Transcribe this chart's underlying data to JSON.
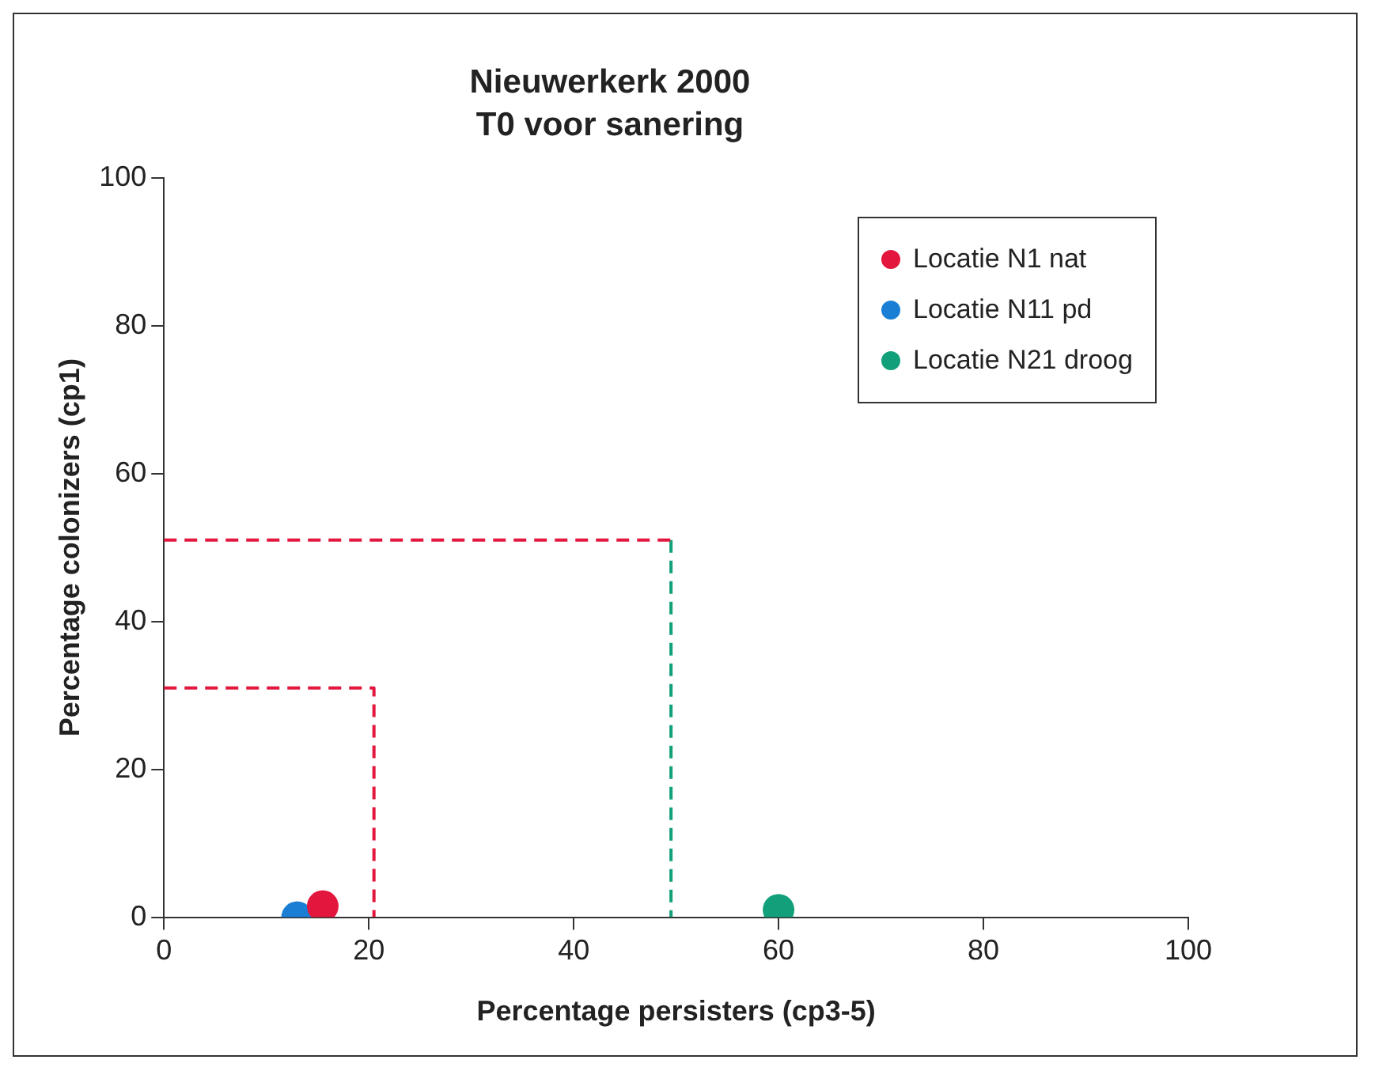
{
  "chart_data": {
    "type": "scatter",
    "title": "Nieuwerkerk 2000",
    "subtitle": "T0 voor sanering",
    "xlabel": "Percentage persisters (cp3-5)",
    "ylabel": "Percentage colonizers (cp1)",
    "xlim": [
      0,
      100
    ],
    "ylim": [
      0,
      100
    ],
    "xticks": [
      0,
      20,
      40,
      60,
      80,
      100
    ],
    "yticks": [
      0,
      20,
      40,
      60,
      80,
      100
    ],
    "grid": false,
    "legend": "top right",
    "marker": "circle",
    "series": [
      {
        "name": "Locatie N1 nat",
        "color": "#e3173d",
        "x": [
          15.5
        ],
        "values": [
          1.5
        ]
      },
      {
        "name": "Locatie N11 pd",
        "color": "#1a7fd4",
        "x": [
          13
        ],
        "values": [
          0
        ]
      },
      {
        "name": "Locatie N21 droog",
        "color": "#12a07a",
        "x": [
          60
        ],
        "values": [
          1
        ]
      },
      {
        "type": "line",
        "color": "#e3173d",
        "line_style": "dashed",
        "marker": "none",
        "x": [
          0,
          20.5,
          20.5
        ],
        "values": [
          31,
          31,
          0
        ]
      },
      {
        "type": "line",
        "color": "#e3173d",
        "line_style": "dashed",
        "marker": "none",
        "x": [
          0,
          49.5
        ],
        "values": [
          51,
          51
        ]
      },
      {
        "type": "line",
        "color": "#12a07a",
        "line_style": "dashed",
        "marker": "none",
        "x": [
          49.5,
          49.5
        ],
        "values": [
          51,
          0
        ]
      }
    ]
  }
}
